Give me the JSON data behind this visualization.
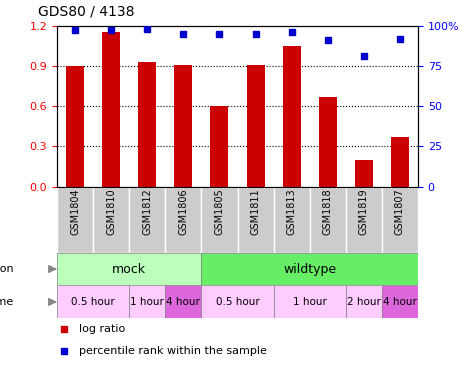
{
  "title": "GDS80 / 4138",
  "samples": [
    "GSM1804",
    "GSM1810",
    "GSM1812",
    "GSM1806",
    "GSM1805",
    "GSM1811",
    "GSM1813",
    "GSM1818",
    "GSM1819",
    "GSM1807"
  ],
  "log_ratio": [
    0.9,
    1.15,
    0.93,
    0.91,
    0.6,
    0.91,
    1.05,
    0.67,
    0.2,
    0.37
  ],
  "percentile": [
    97,
    97,
    98,
    95,
    95,
    95,
    96,
    91,
    81,
    92
  ],
  "bar_color": "#cc0000",
  "dot_color": "#0000cc",
  "left_ylim": [
    0,
    1.2
  ],
  "right_ylim": [
    0,
    100
  ],
  "left_yticks": [
    0,
    0.3,
    0.6,
    0.9,
    1.2
  ],
  "right_yticks": [
    0,
    25,
    50,
    75,
    100
  ],
  "infection_groups": [
    {
      "label": "mock",
      "start": 0,
      "end": 4,
      "color": "#bbffbb"
    },
    {
      "label": "wildtype",
      "start": 4,
      "end": 10,
      "color": "#66ee66"
    }
  ],
  "time_groups": [
    {
      "label": "0.5 hour",
      "start": 0,
      "end": 2,
      "color": "#ffccff"
    },
    {
      "label": "1 hour",
      "start": 2,
      "end": 3,
      "color": "#ffccff"
    },
    {
      "label": "4 hour",
      "start": 3,
      "end": 4,
      "color": "#dd66dd"
    },
    {
      "label": "0.5 hour",
      "start": 4,
      "end": 6,
      "color": "#ffccff"
    },
    {
      "label": "1 hour",
      "start": 6,
      "end": 8,
      "color": "#ffccff"
    },
    {
      "label": "2 hour",
      "start": 8,
      "end": 9,
      "color": "#ffccff"
    },
    {
      "label": "4 hour",
      "start": 9,
      "end": 10,
      "color": "#dd66dd"
    }
  ],
  "sample_cell_color": "#cccccc",
  "background_color": "#ffffff"
}
